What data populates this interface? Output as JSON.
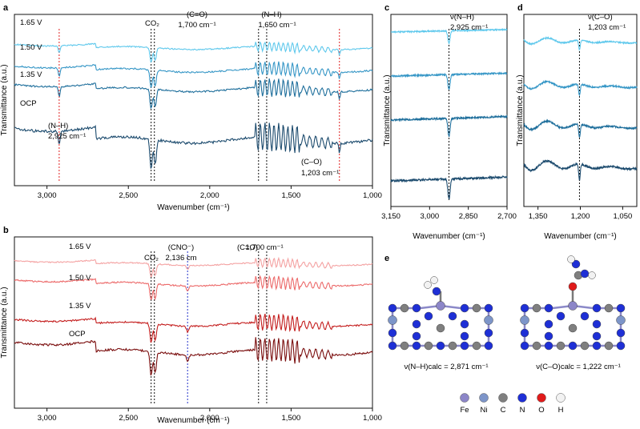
{
  "panels": {
    "a": {
      "label": "a"
    },
    "b": {
      "label": "b"
    },
    "c": {
      "label": "c"
    },
    "d": {
      "label": "d"
    },
    "e": {
      "label": "e"
    }
  },
  "molecules": {
    "nh_caption": "ν(N–H)calc = 2,871 cm⁻¹",
    "co_caption": "ν(C–O)calc = 1,222 cm⁻¹"
  },
  "legend": [
    {
      "label": "Fe",
      "color": "#8c86c8"
    },
    {
      "label": "Ni",
      "color": "#7d95c9"
    },
    {
      "label": "C",
      "color": "#7f7f7f"
    },
    {
      "label": "N",
      "color": "#1e2fd6"
    },
    {
      "label": "O",
      "color": "#e01b1b"
    },
    {
      "label": "H",
      "color": "#f2f2f2"
    }
  ],
  "chart_data": [
    {
      "id": "a",
      "type": "line",
      "xlabel": "Wavenumber (cm⁻¹)",
      "ylabel": "Transmittance (a.u.)",
      "xlim": [
        3200,
        1000
      ],
      "xticks": [
        {
          "v": 3000,
          "t": "3,000"
        },
        {
          "v": 2500,
          "t": "2,500"
        },
        {
          "v": 2000,
          "t": "2,000"
        },
        {
          "v": 1500,
          "t": "1,500"
        },
        {
          "v": 1000,
          "t": "1,000"
        }
      ],
      "series": [
        {
          "name": "1.65 V",
          "color": "#5ec8ec"
        },
        {
          "name": "1.50 V",
          "color": "#3596c6"
        },
        {
          "name": "1.35 V",
          "color": "#1f6f9c"
        },
        {
          "name": "OCP",
          "color": "#1b4a6d"
        }
      ],
      "markers": [
        {
          "x": 2925,
          "color": "#e02020"
        },
        {
          "x": 2360,
          "color": "#111111"
        },
        {
          "x": 2340,
          "color": "#111111"
        },
        {
          "x": 1700,
          "color": "#111111"
        },
        {
          "x": 1650,
          "color": "#111111"
        },
        {
          "x": 1203,
          "color": "#e02020"
        }
      ],
      "annotations": [
        "CO₂",
        "(C=O)",
        "1,700 cm⁻¹",
        "(N–H)",
        "1,650 cm⁻¹",
        "(N–H)",
        "2,925 cm⁻¹",
        "(C–O)",
        "1,203 cm⁻¹"
      ]
    },
    {
      "id": "b",
      "type": "line",
      "xlabel": "Wavenumber (cm⁻¹)",
      "ylabel": "Transmittance (a.u.)",
      "xlim": [
        3200,
        1000
      ],
      "xticks": [
        {
          "v": 3000,
          "t": "3,000"
        },
        {
          "v": 2500,
          "t": "2,500"
        },
        {
          "v": 2000,
          "t": "2,000"
        },
        {
          "v": 1500,
          "t": "1,500"
        },
        {
          "v": 1000,
          "t": "1,000"
        }
      ],
      "series": [
        {
          "name": "1.65 V",
          "color": "#f4a2a2"
        },
        {
          "name": "1.50 V",
          "color": "#ec6a6a"
        },
        {
          "name": "1.35 V",
          "color": "#c41e1e"
        },
        {
          "name": "OCP",
          "color": "#7a0d0d"
        }
      ],
      "markers": [
        {
          "x": 2360,
          "color": "#111111"
        },
        {
          "x": 2340,
          "color": "#111111"
        },
        {
          "x": 2136,
          "color": "#2230c8"
        },
        {
          "x": 1700,
          "color": "#111111"
        },
        {
          "x": 1650,
          "color": "#111111"
        }
      ],
      "annotations": [
        "CO₂",
        "(CNO⁻)",
        "2,136 cm",
        "(C=O)",
        "1,700 cm⁻¹",
        "(N–H)",
        "1,650 cm⁻¹"
      ]
    },
    {
      "id": "c",
      "type": "line",
      "xlabel": "Wavenumber (cm⁻¹)",
      "ylabel": "Transmittance (a.u.)",
      "xlim": [
        3150,
        2700
      ],
      "xticks": [
        {
          "v": 3150,
          "t": "3,150"
        },
        {
          "v": 3000,
          "t": "3,000"
        },
        {
          "v": 2850,
          "t": "2,850"
        },
        {
          "v": 2700,
          "t": "2,700"
        }
      ],
      "series": [
        {
          "color": "#5ec8ec"
        },
        {
          "color": "#3596c6"
        },
        {
          "color": "#1f6f9c"
        },
        {
          "color": "#1b4a6d"
        }
      ],
      "markers": [
        {
          "x": 2925,
          "color": "#111111"
        }
      ],
      "annotations": [
        "ν(N–H)",
        "2,925 cm⁻¹"
      ]
    },
    {
      "id": "d",
      "type": "line",
      "xlabel": "Wavenumber (cm⁻¹)",
      "ylabel": "Transmittance (a.u.)",
      "xlim": [
        1400,
        1000
      ],
      "xticks": [
        {
          "v": 1350,
          "t": "1,350"
        },
        {
          "v": 1200,
          "t": "1,200"
        },
        {
          "v": 1050,
          "t": "1,050"
        }
      ],
      "series": [
        {
          "color": "#5ec8ec"
        },
        {
          "color": "#3596c6"
        },
        {
          "color": "#1f6f9c"
        },
        {
          "color": "#1b4a6d"
        }
      ],
      "markers": [
        {
          "x": 1203,
          "color": "#111111"
        }
      ],
      "annotations": [
        "ν(C–O)",
        "1,203 cm⁻¹"
      ]
    }
  ]
}
